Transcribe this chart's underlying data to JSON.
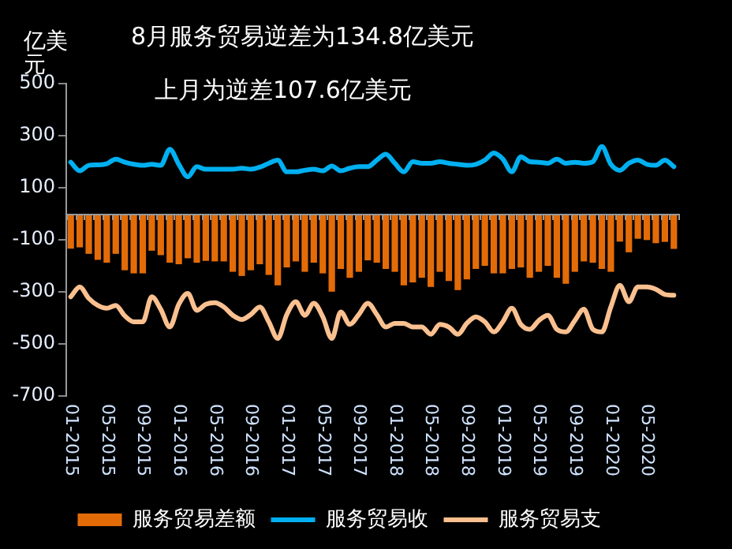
{
  "chart_data": {
    "type": "bar",
    "title": "8月服务贸易逆差为134.8亿美元",
    "subtitle": "上月为逆差107.6亿美元",
    "ylabel": "亿美元",
    "categories": [
      "01-2015",
      null,
      null,
      null,
      "05-2015",
      null,
      null,
      null,
      "09-2015",
      null,
      null,
      null,
      "01-2016",
      null,
      null,
      null,
      "05-2016",
      null,
      null,
      null,
      "09-2016",
      null,
      null,
      null,
      "01-2017",
      null,
      null,
      null,
      "05-2017",
      null,
      null,
      null,
      "09-2017",
      null,
      null,
      null,
      "01-2018",
      null,
      null,
      null,
      "05-2018",
      null,
      null,
      null,
      "09-2018",
      null,
      null,
      null,
      "01-2019",
      null,
      null,
      null,
      "05-2019",
      null,
      null,
      null,
      "09-2019",
      null,
      null,
      null,
      "01-2020",
      null,
      null,
      null,
      "05-2020",
      null,
      null,
      null
    ],
    "series": [
      {
        "name": "服务贸易差额",
        "color": "#e36c09",
        "values": [
          -134,
          -129,
          -154,
          -177,
          -188,
          -154,
          -217,
          -229,
          -229,
          -142,
          -159,
          -188,
          -194,
          -171,
          -188,
          -181,
          -183,
          -183,
          -223,
          -239,
          -217,
          -194,
          -235,
          -275,
          -206,
          -183,
          -223,
          -188,
          -229,
          -299,
          -212,
          -246,
          -223,
          -179,
          -188,
          -212,
          -223,
          -275,
          -264,
          -246,
          -281,
          -223,
          -258,
          -293,
          -252,
          -212,
          -200,
          -229,
          -229,
          -212,
          -206,
          -246,
          -223,
          -200,
          -246,
          -269,
          -223,
          -183,
          -188,
          -212,
          -223,
          -107,
          -148,
          -96,
          -101,
          -113,
          -108,
          -135
        ]
      },
      {
        "name": "服务贸易收",
        "type": "line",
        "color": "#00b0f0",
        "values": [
          198,
          165,
          186,
          188,
          192,
          210,
          198,
          190,
          186,
          190,
          186,
          248,
          190,
          142,
          181,
          171,
          171,
          171,
          171,
          175,
          171,
          179,
          194,
          206,
          161,
          161,
          167,
          171,
          165,
          183,
          165,
          175,
          181,
          181,
          206,
          229,
          194,
          161,
          200,
          194,
          194,
          200,
          194,
          190,
          186,
          190,
          206,
          233,
          210,
          161,
          219,
          200,
          198,
          194,
          210,
          194,
          198,
          194,
          200,
          258,
          190,
          167,
          194,
          206,
          190,
          186,
          206,
          181
        ]
      },
      {
        "name": "服务贸易支",
        "type": "line",
        "color": "#fac090",
        "values": [
          -319,
          -281,
          -325,
          -352,
          -363,
          -352,
          -392,
          -415,
          -415,
          -319,
          -367,
          -435,
          -348,
          -306,
          -371,
          -348,
          -342,
          -358,
          -390,
          -406,
          -387,
          -358,
          -415,
          -479,
          -387,
          -338,
          -390,
          -344,
          -396,
          -479,
          -377,
          -425,
          -387,
          -344,
          -387,
          -435,
          -421,
          -421,
          -435,
          -435,
          -463,
          -425,
          -435,
          -463,
          -421,
          -396,
          -415,
          -454,
          -415,
          -363,
          -425,
          -444,
          -410,
          -390,
          -444,
          -454,
          -410,
          -367,
          -444,
          -454,
          -358,
          -275,
          -338,
          -281,
          -281,
          -290,
          -310,
          -313
        ]
      }
    ],
    "ylim": [
      -700,
      500
    ],
    "yticks": [
      -700,
      -500,
      -300,
      -100,
      100,
      300,
      500
    ],
    "grid": false,
    "legend": "bottom"
  }
}
